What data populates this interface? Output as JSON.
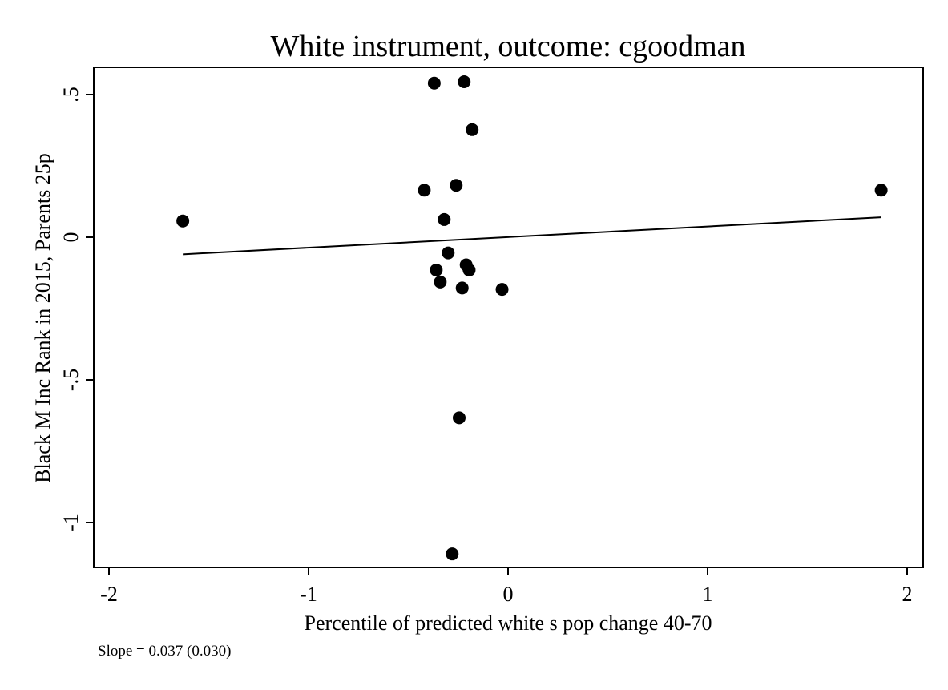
{
  "chart_data": {
    "type": "scatter",
    "title": "White instrument, outcome: cgoodman",
    "xlabel": "Percentile of predicted white s pop change 40-70",
    "ylabel": "Black M Inc Rank in 2015, Parents 25p",
    "xlim": [
      -2.05,
      2.05
    ],
    "ylim": [
      -1.16,
      0.58
    ],
    "x_ticks": [
      -2,
      -1,
      0,
      1,
      2
    ],
    "x_tick_labels": [
      "-2",
      "-1",
      "0",
      "1",
      "2"
    ],
    "y_ticks": [
      0.5,
      0,
      -0.5,
      -1
    ],
    "y_tick_labels": [
      ".5",
      "0",
      "-.5",
      "-1"
    ],
    "grid": false,
    "points": [
      {
        "x": -1.63,
        "y": 0.057
      },
      {
        "x": -0.37,
        "y": 0.54
      },
      {
        "x": -0.22,
        "y": 0.545
      },
      {
        "x": -0.18,
        "y": 0.377
      },
      {
        "x": -0.42,
        "y": 0.165
      },
      {
        "x": -0.26,
        "y": 0.182
      },
      {
        "x": -0.32,
        "y": 0.062
      },
      {
        "x": -0.3,
        "y": -0.055
      },
      {
        "x": -0.36,
        "y": -0.115
      },
      {
        "x": -0.34,
        "y": -0.157
      },
      {
        "x": -0.21,
        "y": -0.097
      },
      {
        "x": -0.195,
        "y": -0.115
      },
      {
        "x": -0.23,
        "y": -0.178
      },
      {
        "x": -0.03,
        "y": -0.183
      },
      {
        "x": -0.245,
        "y": -0.633
      },
      {
        "x": -0.28,
        "y": -1.11
      },
      {
        "x": 1.87,
        "y": 0.165
      }
    ],
    "fit_line": {
      "x": [
        -1.63,
        1.87
      ],
      "y": [
        -0.06,
        0.07
      ]
    }
  },
  "caption": "Slope = 0.037 (0.030)"
}
